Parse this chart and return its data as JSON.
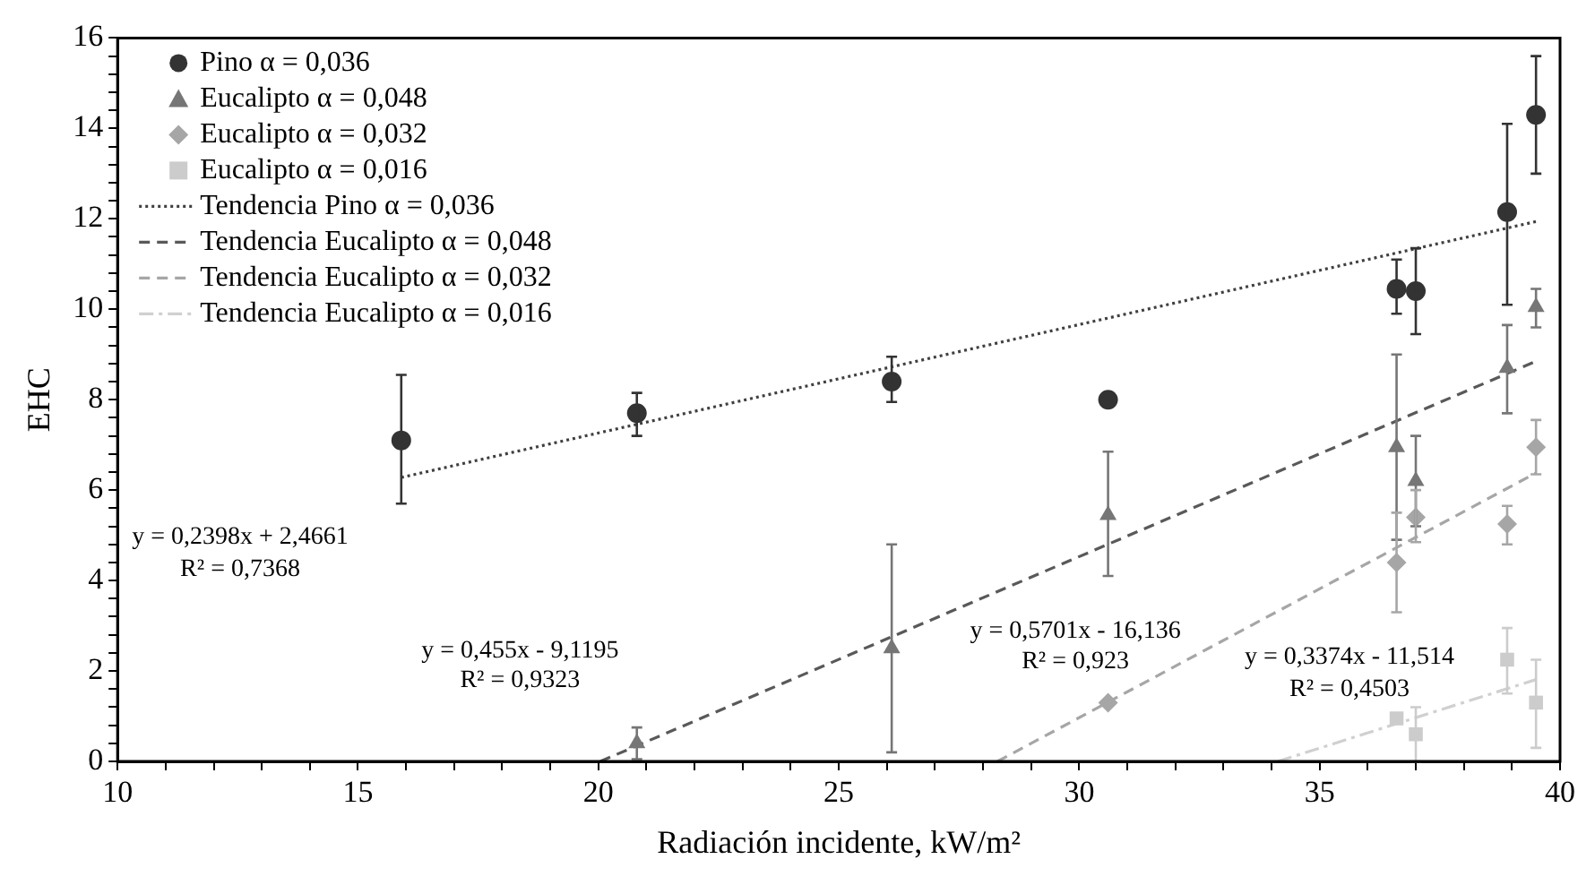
{
  "chart_data": {
    "type": "scatter",
    "xlabel": "Radiación incidente, kW/m²",
    "ylabel": "EHC",
    "xlim": [
      10,
      40
    ],
    "ylim": [
      0,
      16
    ],
    "xticks": [
      10,
      {
        "value": 11,
        "label": null
      },
      {
        "value": 12,
        "label": null
      },
      {
        "value": 13,
        "label": null
      },
      {
        "value": 14,
        "label": null
      },
      15,
      {
        "value": 16,
        "label": null
      },
      {
        "value": 17,
        "label": null
      },
      {
        "value": 18,
        "label": null
      },
      {
        "value": 19,
        "label": null
      },
      20,
      {
        "value": 21,
        "label": null
      },
      {
        "value": 22,
        "label": null
      },
      {
        "value": 23,
        "label": null
      },
      {
        "value": 24,
        "label": null
      },
      25,
      {
        "value": 26,
        "label": null
      },
      {
        "value": 27,
        "label": null
      },
      {
        "value": 28,
        "label": null
      },
      {
        "value": 29,
        "label": null
      },
      30,
      {
        "value": 31,
        "label": null
      },
      {
        "value": 32,
        "label": null
      },
      {
        "value": 33,
        "label": null
      },
      {
        "value": 34,
        "label": null
      },
      35,
      {
        "value": 36,
        "label": null
      },
      {
        "value": 37,
        "label": null
      },
      {
        "value": 38,
        "label": null
      },
      {
        "value": 39,
        "label": null
      },
      40
    ],
    "yticks": [
      0,
      {
        "value": 0.4,
        "label": null
      },
      {
        "value": 0.8,
        "label": null
      },
      {
        "value": 1.2,
        "label": null
      },
      {
        "value": 1.6,
        "label": null
      },
      2,
      {
        "value": 2.4,
        "label": null
      },
      {
        "value": 2.8,
        "label": null
      },
      {
        "value": 3.2,
        "label": null
      },
      {
        "value": 3.6,
        "label": null
      },
      4,
      {
        "value": 4.4,
        "label": null
      },
      {
        "value": 4.8,
        "label": null
      },
      {
        "value": 5.2,
        "label": null
      },
      {
        "value": 5.6,
        "label": null
      },
      6,
      {
        "value": 6.4,
        "label": null
      },
      {
        "value": 6.8,
        "label": null
      },
      {
        "value": 7.2,
        "label": null
      },
      {
        "value": 7.6,
        "label": null
      },
      8,
      {
        "value": 8.4,
        "label": null
      },
      {
        "value": 8.8,
        "label": null
      },
      {
        "value": 9.2,
        "label": null
      },
      {
        "value": 9.6,
        "label": null
      },
      10,
      {
        "value": 10.4,
        "label": null
      },
      {
        "value": 10.8,
        "label": null
      },
      {
        "value": 11.2,
        "label": null
      },
      {
        "value": 11.6,
        "label": null
      },
      12,
      {
        "value": 12.4,
        "label": null
      },
      {
        "value": 12.8,
        "label": null
      },
      {
        "value": 13.2,
        "label": null
      },
      {
        "value": 13.6,
        "label": null
      },
      14,
      {
        "value": 14.4,
        "label": null
      },
      {
        "value": 14.8,
        "label": null
      },
      {
        "value": 15.2,
        "label": null
      },
      {
        "value": 15.6,
        "label": null
      },
      16
    ],
    "grid": false,
    "legend": "top left",
    "series": [
      {
        "name": "Pino α = 0,036",
        "marker": "circle",
        "color": "#333333",
        "x": [
          15.9,
          20.8,
          26.1,
          30.6,
          36.6,
          37.0,
          38.9,
          39.5
        ],
        "values": [
          7.1,
          7.7,
          8.4,
          8.0,
          10.45,
          10.4,
          12.15,
          14.3
        ],
        "errors": [
          [
            5.7,
            8.55
          ],
          [
            7.2,
            8.15
          ],
          [
            7.95,
            8.95
          ],
          null,
          [
            9.9,
            11.1
          ],
          [
            9.45,
            11.35
          ],
          [
            10.1,
            14.1
          ],
          [
            13.0,
            15.6
          ]
        ]
      },
      {
        "name": "Eucalipto α = 0,048",
        "marker": "triangle",
        "color": "#767676",
        "x": [
          20.8,
          26.1,
          30.6,
          36.6,
          37.0,
          38.9,
          39.5
        ],
        "values": [
          0.4,
          2.5,
          5.45,
          6.95,
          6.2,
          8.7,
          10.05
        ],
        "errors": [
          [
            0.05,
            0.75
          ],
          [
            0.2,
            4.8
          ],
          [
            4.1,
            6.85
          ],
          [
            4.9,
            9.0
          ],
          [
            5.2,
            7.2
          ],
          [
            7.7,
            9.65
          ],
          [
            9.6,
            10.45
          ]
        ]
      },
      {
        "name": "Eucalipto α = 0,032",
        "marker": "diamond",
        "color": "#a6a6a6",
        "x": [
          30.6,
          36.6,
          37.0,
          38.9,
          39.5
        ],
        "values": [
          1.3,
          4.4,
          5.4,
          5.25,
          6.95
        ],
        "errors": [
          null,
          [
            3.3,
            5.5
          ],
          [
            4.85,
            6.0
          ],
          [
            4.8,
            5.65
          ],
          [
            6.35,
            7.55
          ]
        ]
      },
      {
        "name": "Eucalipto α = 0,016",
        "marker": "square",
        "color": "#cccccc",
        "x": [
          36.6,
          37.0,
          38.9,
          39.5
        ],
        "values": [
          0.95,
          0.6,
          2.25,
          1.3
        ],
        "errors": [
          null,
          [
            0.0,
            1.2
          ],
          [
            1.5,
            2.95
          ],
          [
            0.3,
            2.25
          ]
        ]
      },
      {
        "name": "Tendencia Pino α = 0,036",
        "type": "line",
        "line_style": "dotted",
        "color": "#404040",
        "x": [
          15.9,
          39.5
        ],
        "values": [
          6.28,
          11.94
        ]
      },
      {
        "name": "Tendencia Eucalipto α = 0,048",
        "type": "line",
        "line_style": "dashed",
        "color": "#595959",
        "x": [
          20.04,
          39.5
        ],
        "values": [
          0,
          8.85
        ]
      },
      {
        "name": "Tendencia Eucalipto α = 0,032",
        "type": "line",
        "line_style": "dashed",
        "color": "#a6a6a6",
        "x": [
          28.3,
          39.5
        ],
        "values": [
          0,
          6.38
        ]
      },
      {
        "name": "Tendencia Eucalipto α = 0,016",
        "type": "line",
        "line_style": "dashdot",
        "color": "#d0d0d0",
        "x": [
          34.13,
          39.5
        ],
        "values": [
          0,
          1.81
        ]
      }
    ],
    "annotations": [
      "y = 0,2398x + 2,4661",
      "R² = 0,7368",
      "y = 0,455x - 9,1195",
      "R² = 0,9323",
      "y = 0,5701x - 16,136",
      "R² = 0,923",
      "y = 0,3374x - 11,514",
      "R² = 0,4503"
    ]
  }
}
